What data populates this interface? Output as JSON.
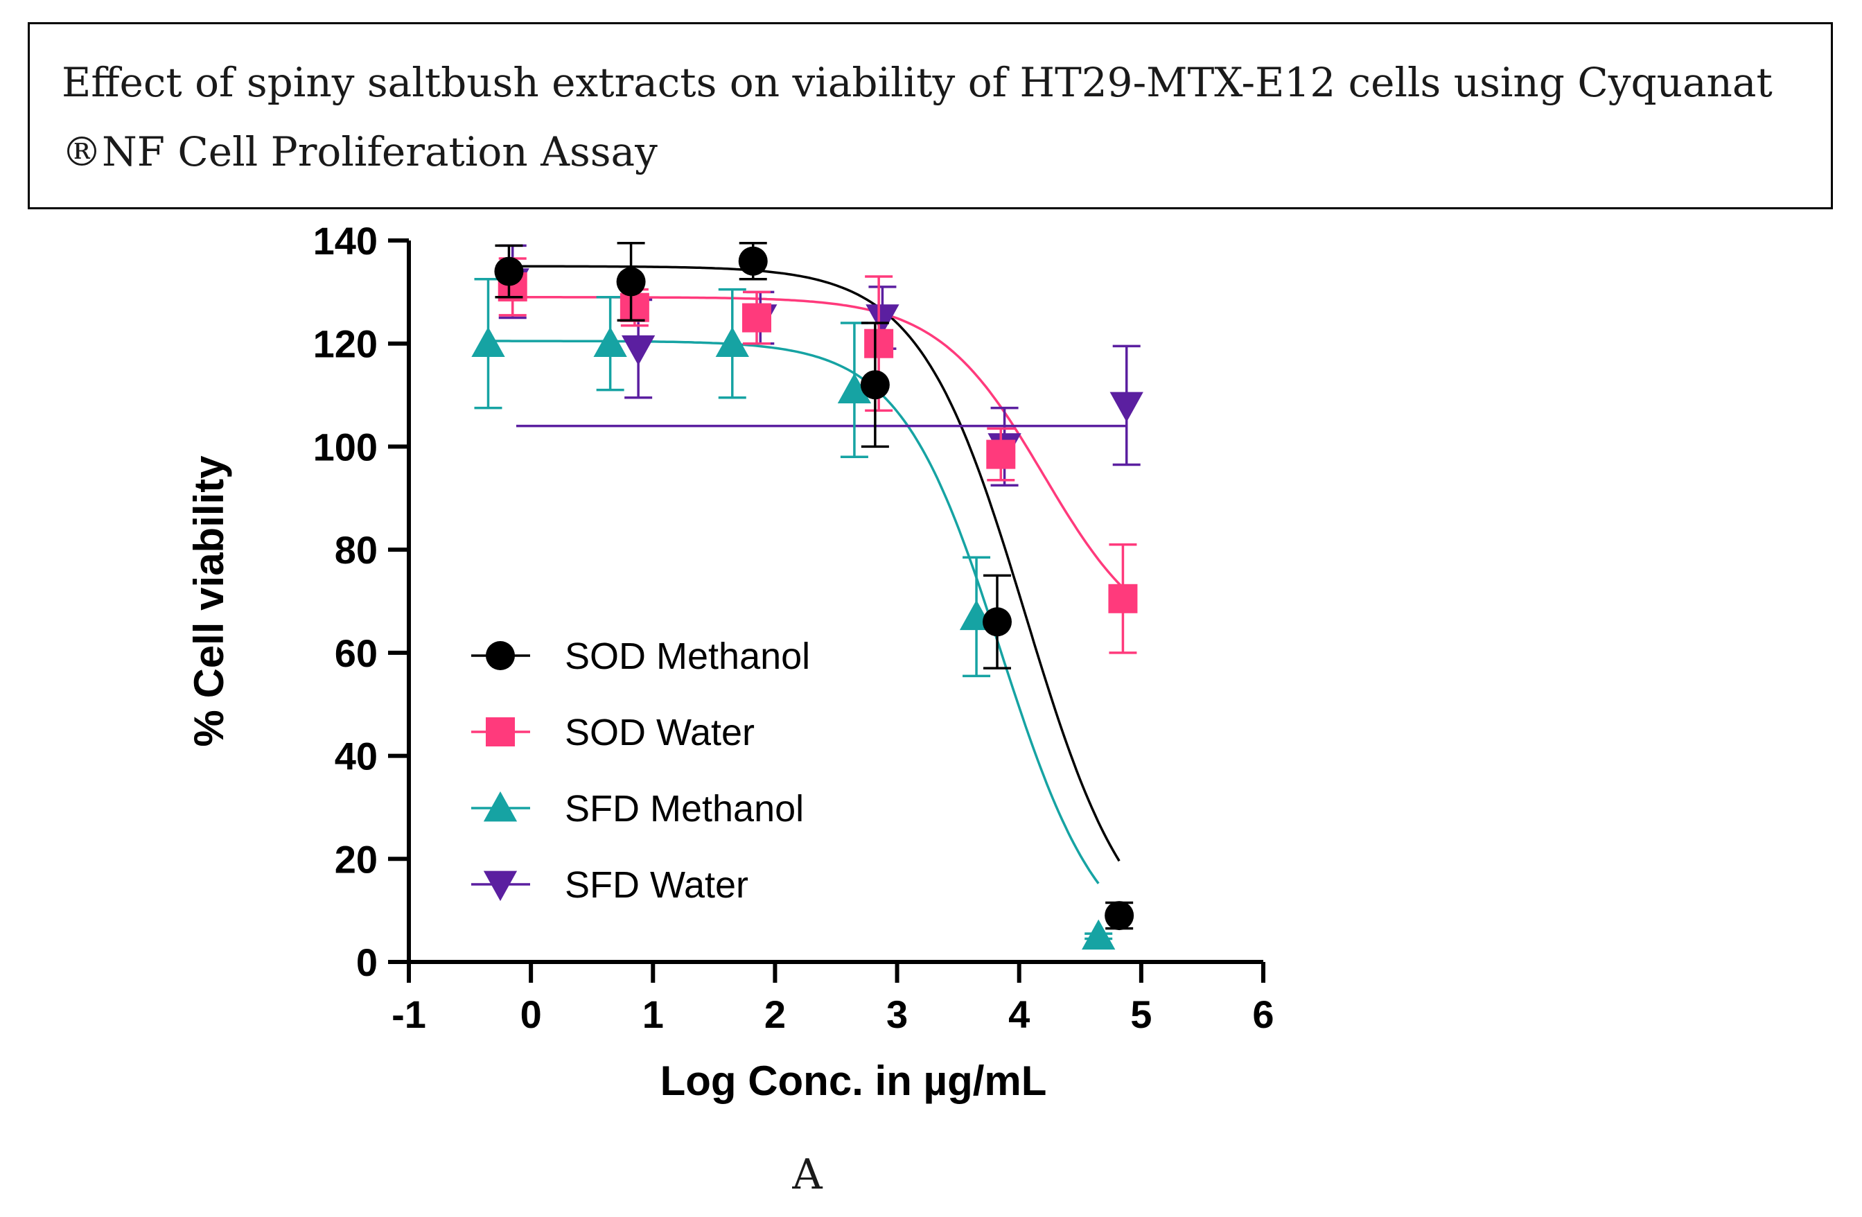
{
  "figure": {
    "title": "Effect of spiny saltbush extracts on viability of HT29-MTX-E12 cells using Cyquanat ®NF Cell Proliferation Assay",
    "panel_label": "A"
  },
  "chart_data": {
    "type": "scatter",
    "title": "",
    "xlabel": "Log Conc. in µg/mL",
    "ylabel": "% Cell viability",
    "xlim": [
      -1,
      6
    ],
    "ylim": [
      0,
      140
    ],
    "xticks": [
      -1,
      0,
      1,
      2,
      3,
      4,
      5,
      6
    ],
    "yticks": [
      0,
      20,
      40,
      60,
      80,
      100,
      120,
      140
    ],
    "grid": false,
    "legend_position": "lower-left",
    "series": [
      {
        "name": "SOD Methanol",
        "color": "#000000",
        "marker": "circle",
        "x": [
          -0.18,
          0.82,
          1.82,
          2.82,
          3.82,
          4.82
        ],
        "y": [
          134,
          132,
          136,
          112,
          66,
          9
        ],
        "err": [
          5,
          7.5,
          3.5,
          12,
          9,
          2.5
        ],
        "fit": {
          "bottom": 0,
          "top": 135,
          "log_ic50": 4.05,
          "hill": 1.0
        }
      },
      {
        "name": "SOD Water",
        "color": "#ff3a7c",
        "marker": "square",
        "x": [
          -0.15,
          0.85,
          1.85,
          2.85,
          3.85,
          4.85
        ],
        "y": [
          131,
          127,
          125,
          120,
          98.5,
          70.5
        ],
        "err": [
          5.5,
          3.5,
          5,
          13,
          5,
          10.5
        ],
        "fit": {
          "bottom": 60,
          "top": 129,
          "log_ic50": 4.2,
          "hill": 1.0
        }
      },
      {
        "name": "SFD Methanol",
        "color": "#16a3a3",
        "marker": "triangle-up",
        "x": [
          -0.35,
          0.65,
          1.65,
          2.65,
          3.65,
          4.65
        ],
        "y": [
          120,
          120,
          120,
          111,
          67,
          5
        ],
        "err": [
          12.5,
          9,
          10.5,
          13,
          11.5,
          0.5
        ],
        "fit": {
          "bottom": 0,
          "top": 120.5,
          "log_ic50": 3.85,
          "hill": 1.05
        }
      },
      {
        "name": "SFD Water",
        "color": "#5b1fa0",
        "marker": "triangle-down",
        "x": [
          -0.15,
          0.88,
          1.88,
          2.88,
          3.88,
          4.88
        ],
        "y": [
          132,
          119,
          125,
          125,
          100,
          108
        ],
        "err": [
          7,
          9.5,
          5,
          6,
          7.5,
          11.5
        ],
        "fit": {
          "constant": 104,
          "x_range": [
            -0.12,
            4.88
          ]
        }
      }
    ]
  }
}
